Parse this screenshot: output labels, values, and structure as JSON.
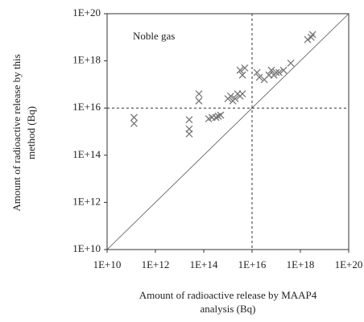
{
  "chart_data": {
    "type": "scatter",
    "annotation": "Noble gas",
    "x_label": [
      "Amount of radioactive release by MAAP4",
      "analysis (Bq)"
    ],
    "y_label": [
      "Amount of radioactive release by this",
      "method (Bq)"
    ],
    "x": [
      130000000000.0,
      130000000000.0,
      25000000000000.0,
      25000000000000.0,
      25000000000000.0,
      63000000000000.0,
      63000000000000.0,
      160000000000000.0,
      220000000000000.0,
      320000000000000.0,
      400000000000000.0,
      500000000000000.0,
      1000000000000000.0,
      1300000000000000.0,
      1600000000000000.0,
      2000000000000000.0,
      2500000000000000.0,
      3200000000000000.0,
      4000000000000000.0,
      3200000000000000.0,
      4000000000000000.0,
      5000000000000000.0,
      1.6e+16,
      2e+16,
      3.2e+16,
      5e+16,
      6.3e+16,
      8e+16,
      1e+17,
      1.3e+17,
      2e+17,
      4e+17,
      2e+18,
      2.8e+18,
      3.2e+18
    ],
    "values": [
      4000000000000000.0,
      2200000000000000.0,
      3200000000000000.0,
      1300000000000000.0,
      800000000000000.0,
      4e+16,
      2e+16,
      3500000000000000.0,
      4000000000000000.0,
      4000000000000000.0,
      4500000000000000.0,
      5000000000000000.0,
      2.5e+16,
      3.2e+16,
      2e+16,
      2.5e+16,
      4e+16,
      3.2e+16,
      4e+16,
      4e+17,
      2.5e+17,
      5e+17,
      3.2e+17,
      2e+17,
      1.6e+17,
      2.5e+17,
      4e+17,
      2.5e+17,
      3.2e+17,
      3.2e+17,
      4e+17,
      8e+17,
      8e+18,
      1e+19,
      1.3e+19
    ],
    "color": "#777777",
    "log_x": true,
    "log_y": true,
    "xlim": [
      10000000000.0,
      1e+20
    ],
    "ylim": [
      10000000000.0,
      1e+20
    ],
    "xticks": [
      {
        "value": 10000000000.0,
        "label": "1E+10"
      },
      {
        "value": 1000000000000.0,
        "label": "1E+12"
      },
      {
        "value": 100000000000000.0,
        "label": "1E+14"
      },
      {
        "value": 1e+16,
        "label": "1E+16"
      },
      {
        "value": 1e+18,
        "label": "1E+18"
      },
      {
        "value": 1e+20,
        "label": "1E+20"
      }
    ],
    "yticks": [
      {
        "value": 10000000000.0,
        "label": "1E+10"
      },
      {
        "value": 1000000000000.0,
        "label": "1E+12"
      },
      {
        "value": 100000000000000.0,
        "label": "1E+14"
      },
      {
        "value": 1e+16,
        "label": "1E+16"
      },
      {
        "value": 1e+18,
        "label": "1E+18"
      },
      {
        "value": 1e+20,
        "label": "1E+20"
      }
    ],
    "reference_lines": {
      "x": 1e+16,
      "y": 1e+16
    }
  }
}
